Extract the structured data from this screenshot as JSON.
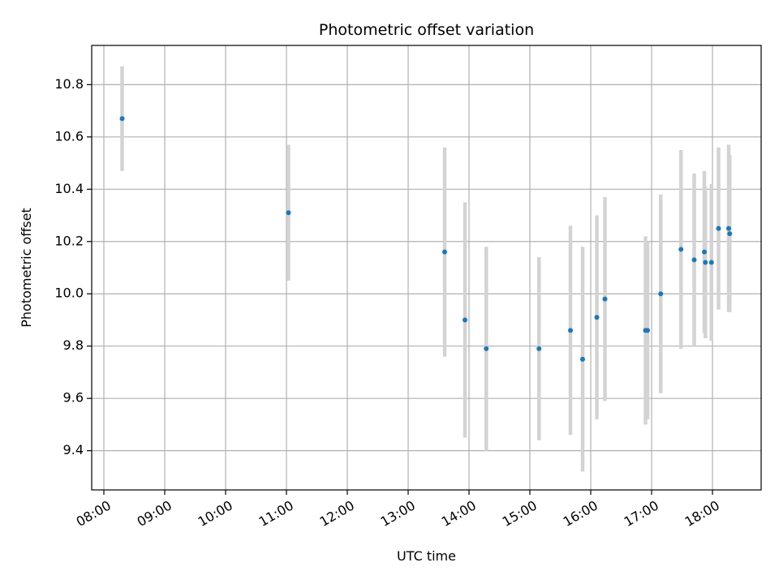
{
  "chart_data": {
    "type": "scatter",
    "title": "Photometric offset variation",
    "xlabel": "UTC time",
    "ylabel": "Photometric offset",
    "x_is_time": true,
    "xlim": [
      "07:48",
      "18:48"
    ],
    "ylim": [
      9.25,
      10.95
    ],
    "x_ticks": [
      "08:00",
      "09:00",
      "10:00",
      "11:00",
      "12:00",
      "13:00",
      "14:00",
      "15:00",
      "16:00",
      "17:00",
      "18:00"
    ],
    "y_ticks": [
      9.4,
      9.6,
      9.8,
      10.0,
      10.2,
      10.4,
      10.6,
      10.8
    ],
    "y_tick_labels": [
      "9.4",
      "9.6",
      "9.8",
      "10.0",
      "10.2",
      "10.4",
      "10.6",
      "10.8"
    ],
    "grid": true,
    "colors": {
      "point": "#1f77b4",
      "errorbar": "#d3d3d3",
      "grid": "#b0b0b0"
    },
    "points": [
      {
        "time": "08:18",
        "y": 10.67,
        "err": 0.2
      },
      {
        "time": "11:02",
        "y": 10.31,
        "err": 0.26
      },
      {
        "time": "13:36",
        "y": 10.16,
        "err": 0.4
      },
      {
        "time": "13:56",
        "y": 9.9,
        "err": 0.45
      },
      {
        "time": "14:17",
        "y": 9.79,
        "err": 0.39
      },
      {
        "time": "15:09",
        "y": 9.79,
        "err": 0.35
      },
      {
        "time": "15:40",
        "y": 9.86,
        "err": 0.4
      },
      {
        "time": "15:52",
        "y": 9.75,
        "err": 0.43
      },
      {
        "time": "16:06",
        "y": 9.91,
        "err": 0.39
      },
      {
        "time": "16:14",
        "y": 9.98,
        "err": 0.39
      },
      {
        "time": "16:54",
        "y": 9.86,
        "err": 0.36
      },
      {
        "time": "16:56",
        "y": 9.86,
        "err": 0.34
      },
      {
        "time": "17:09",
        "y": 10.0,
        "err": 0.38
      },
      {
        "time": "17:29",
        "y": 10.17,
        "err": 0.38
      },
      {
        "time": "17:42",
        "y": 10.13,
        "err": 0.33
      },
      {
        "time": "17:52",
        "y": 10.16,
        "err": 0.31
      },
      {
        "time": "17:53",
        "y": 10.12,
        "err": 0.29
      },
      {
        "time": "17:59",
        "y": 10.12,
        "err": 0.3
      },
      {
        "time": "18:06",
        "y": 10.25,
        "err": 0.31
      },
      {
        "time": "18:16",
        "y": 10.25,
        "err": 0.32
      },
      {
        "time": "18:17",
        "y": 10.23,
        "err": 0.3
      }
    ]
  }
}
